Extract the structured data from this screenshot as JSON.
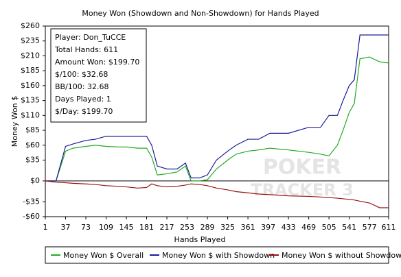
{
  "chart_data": {
    "type": "line",
    "title": "Money Won (Showdown and Non-Showdown) for Hands Played",
    "x_label": "Hands Played",
    "y_label": "Money Won $",
    "annotations": [
      "Player: Don_TuCCE",
      "Total Hands: 611",
      "Amount Won: $199.70",
      "$/100: $32.68",
      "BB/100: 32.68",
      "Days Played: 1",
      "$/Day: $199.70"
    ],
    "watermark": [
      "POKER",
      "TRACKER 3"
    ],
    "x": [
      1,
      20,
      37,
      50,
      73,
      90,
      109,
      130,
      145,
      165,
      181,
      190,
      200,
      217,
      235,
      250,
      260,
      275,
      289,
      305,
      325,
      340,
      361,
      380,
      400,
      433,
      469,
      490,
      505,
      520,
      530,
      541,
      550,
      560,
      577,
      595,
      611
    ],
    "series": [
      {
        "name": "Money Won $ Overall",
        "color": "#22aa22",
        "values": [
          0,
          0,
          50,
          55,
          58,
          60,
          58,
          57,
          57,
          55,
          55,
          40,
          10,
          12,
          15,
          25,
          0,
          0,
          2,
          20,
          35,
          45,
          50,
          52,
          55,
          52,
          48,
          45,
          42,
          60,
          85,
          115,
          130,
          205,
          208,
          200,
          198
        ]
      },
      {
        "name": "Money Won $ with Showdown",
        "color": "#1a1a99",
        "values": [
          0,
          0,
          58,
          62,
          68,
          70,
          75,
          75,
          75,
          75,
          75,
          60,
          25,
          20,
          20,
          30,
          5,
          5,
          10,
          35,
          50,
          60,
          70,
          70,
          80,
          80,
          90,
          90,
          110,
          110,
          135,
          160,
          170,
          245,
          245,
          245,
          245
        ]
      },
      {
        "name": "Money Won $ without Showdown",
        "color": "#991111",
        "values": [
          0,
          -2,
          -3,
          -4,
          -5,
          -6,
          -8,
          -9,
          -10,
          -12,
          -11,
          -5,
          -8,
          -10,
          -9,
          -7,
          -5,
          -6,
          -8,
          -12,
          -15,
          -18,
          -20,
          -22,
          -23,
          -25,
          -26,
          -27,
          -28,
          -29,
          -30,
          -31,
          -32,
          -34,
          -37,
          -45,
          -45
        ]
      }
    ],
    "xlim": [
      1,
      611
    ],
    "xticks": [
      1,
      37,
      73,
      109,
      145,
      181,
      217,
      253,
      289,
      325,
      361,
      397,
      433,
      469,
      505,
      541,
      577,
      611
    ],
    "ylim": [
      -60,
      260
    ],
    "yticks": [
      {
        "value": 260,
        "label": "$260"
      },
      {
        "value": 235,
        "label": "$235"
      },
      {
        "value": 210,
        "label": "$210"
      },
      {
        "value": 185,
        "label": "$185"
      },
      {
        "value": 160,
        "label": "$160"
      },
      {
        "value": 135,
        "label": "$135"
      },
      {
        "value": 110,
        "label": "$110"
      },
      {
        "value": 85,
        "label": "$85"
      },
      {
        "value": 60,
        "label": "$60"
      },
      {
        "value": 35,
        "label": "$35"
      },
      {
        "value": 0,
        "label": "$0"
      },
      {
        "value": -35,
        "label": "-$35"
      },
      {
        "value": -60,
        "label": "-$60"
      }
    ],
    "zero_line": true,
    "legend": "bottom"
  }
}
